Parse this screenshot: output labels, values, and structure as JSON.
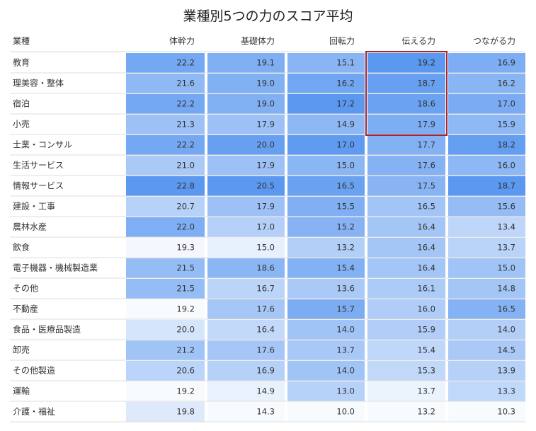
{
  "chart_data": {
    "type": "table",
    "title": "業種別5つの力のスコア平均",
    "row_header": "業種",
    "columns": [
      "体幹力",
      "基礎体力",
      "回転力",
      "伝える力",
      "つながる力"
    ],
    "rows": [
      {
        "label": "教育",
        "values": [
          22.2,
          19.1,
          15.1,
          19.2,
          16.9
        ]
      },
      {
        "label": "理美容・整体",
        "values": [
          21.6,
          19.0,
          16.2,
          18.7,
          16.2
        ]
      },
      {
        "label": "宿泊",
        "values": [
          22.2,
          19.0,
          17.2,
          18.6,
          17.0
        ]
      },
      {
        "label": "小売",
        "values": [
          21.3,
          17.9,
          14.9,
          17.9,
          15.9
        ]
      },
      {
        "label": "士業・コンサル",
        "values": [
          22.2,
          20.0,
          17.0,
          17.7,
          18.2
        ]
      },
      {
        "label": "生活サービス",
        "values": [
          21.0,
          17.9,
          15.0,
          17.6,
          16.0
        ]
      },
      {
        "label": "情報サービス",
        "values": [
          22.8,
          20.5,
          16.5,
          17.5,
          18.7
        ]
      },
      {
        "label": "建設・工事",
        "values": [
          20.7,
          17.9,
          15.5,
          16.5,
          15.6
        ]
      },
      {
        "label": "農林水産",
        "values": [
          22.0,
          17.0,
          15.2,
          16.4,
          13.4
        ]
      },
      {
        "label": "飲食",
        "values": [
          19.3,
          15.0,
          13.2,
          16.4,
          13.7
        ]
      },
      {
        "label": "電子機器・機械製造業",
        "values": [
          21.5,
          18.6,
          15.4,
          16.4,
          15.0
        ]
      },
      {
        "label": "その他",
        "values": [
          21.5,
          16.7,
          13.6,
          16.1,
          14.8
        ]
      },
      {
        "label": "不動産",
        "values": [
          19.2,
          17.6,
          15.7,
          16.0,
          16.5
        ]
      },
      {
        "label": "食品・医療品製造",
        "values": [
          20.0,
          16.4,
          14.0,
          15.9,
          14.0
        ]
      },
      {
        "label": "卸売",
        "values": [
          21.2,
          17.6,
          13.7,
          15.4,
          14.5
        ]
      },
      {
        "label": "その他製造",
        "values": [
          20.6,
          16.9,
          14.0,
          15.3,
          13.9
        ]
      },
      {
        "label": "運輸",
        "values": [
          19.2,
          14.9,
          13.0,
          13.7,
          13.3
        ]
      },
      {
        "label": "介護・福祉",
        "values": [
          19.8,
          14.3,
          10.0,
          13.2,
          10.3
        ]
      }
    ],
    "color_scale": {
      "low": "#ffffff",
      "high": "#5b98f0"
    },
    "highlight": {
      "column": 3,
      "row_start": 0,
      "row_end": 3,
      "color": "#a6262f"
    }
  }
}
